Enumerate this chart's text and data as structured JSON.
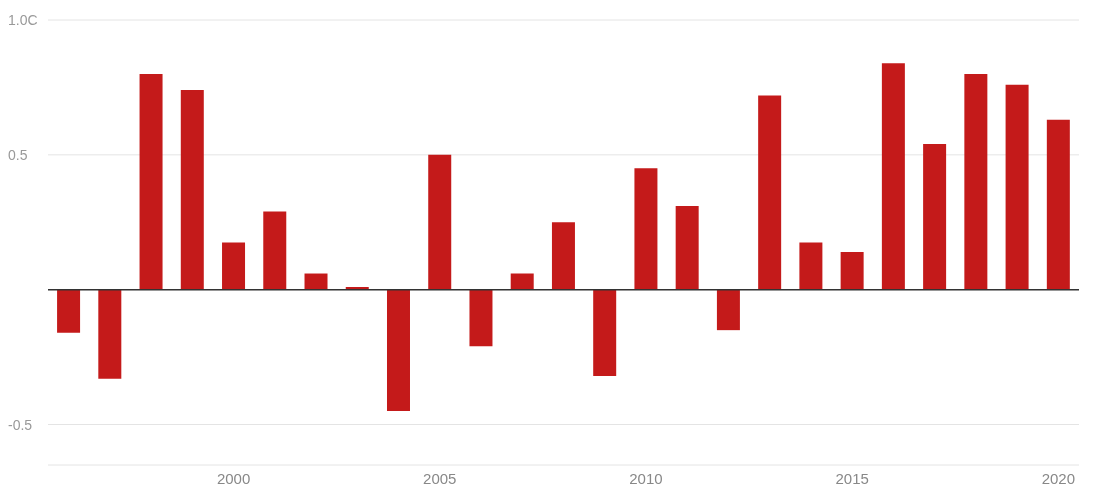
{
  "chart_data": {
    "type": "bar",
    "categories": [
      null,
      null,
      null,
      null,
      "2000",
      null,
      null,
      null,
      null,
      "2005",
      null,
      null,
      null,
      null,
      "2010",
      null,
      null,
      null,
      null,
      "2015",
      null,
      null,
      null,
      null,
      "2020"
    ],
    "values": [
      -0.16,
      -0.33,
      0.8,
      0.74,
      0.175,
      0.29,
      0.06,
      0.01,
      -0.45,
      0.5,
      -0.21,
      0.06,
      0.25,
      -0.32,
      0.45,
      0.31,
      -0.15,
      0.72,
      0.175,
      0.14,
      0.84,
      0.54,
      0.8,
      0.76,
      0.63
    ],
    "color": "#c41a1a",
    "ylim": [
      -0.65,
      1.0
    ],
    "yticks": [
      -0.5,
      {
        "value": 0,
        "label": null
      },
      0.5,
      {
        "value": 1.0,
        "label": "1.0C"
      }
    ],
    "grid": "y"
  }
}
